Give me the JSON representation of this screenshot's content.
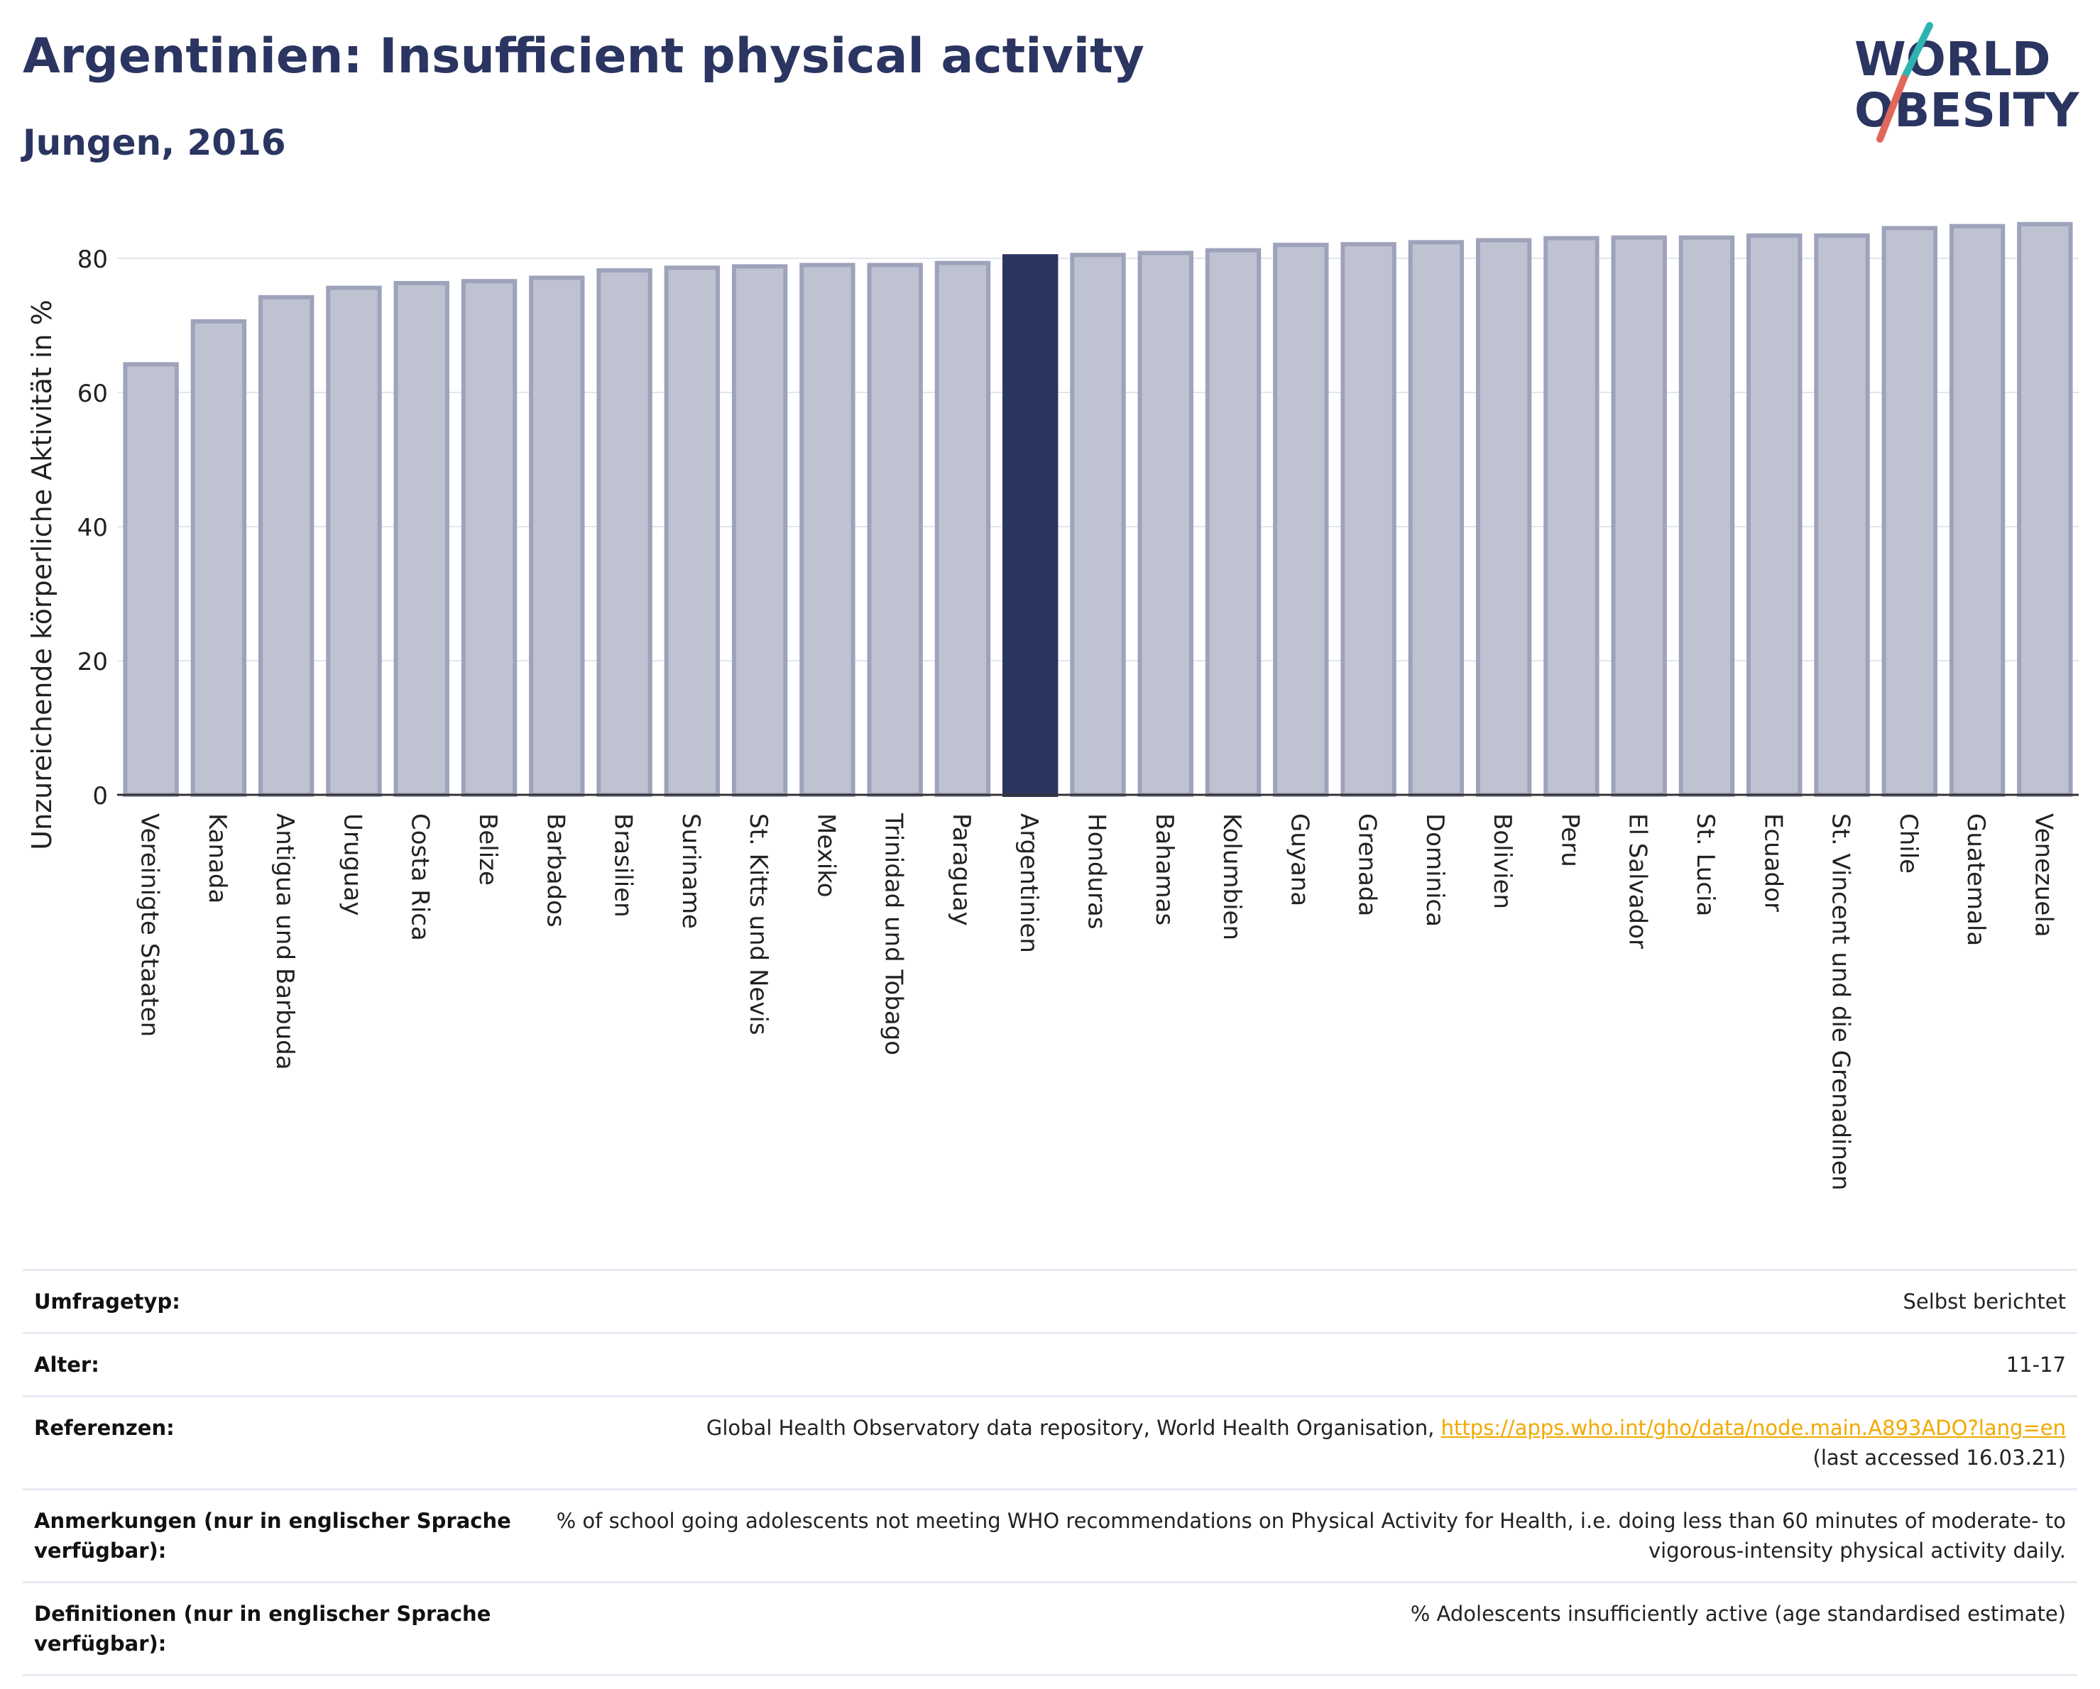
{
  "header": {
    "title": "Argentinien: Insufficient physical activity",
    "subtitle": "Jungen, 2016",
    "logo_text_line1": "WORLD",
    "logo_text_line2": "OBESITY"
  },
  "colors": {
    "title": "#2b3561",
    "bar_fill": "#bfc2d0",
    "bar_stroke": "#9ea3bb",
    "bar_highlight": "#2b3561",
    "grid": "#e3e5ee",
    "link": "#f2a900",
    "logo_dark": "#2b3561",
    "logo_teal": "#2fb3b0",
    "logo_red": "#e0675a"
  },
  "chart_data": {
    "type": "bar",
    "ylabel": "Unzureichende körperliche Aktivität in %",
    "xlabel": "",
    "ylim": [
      0,
      88
    ],
    "yticks": [
      0,
      20,
      40,
      60,
      80
    ],
    "grid": true,
    "highlight": "Argentinien",
    "categories": [
      "Vereinigte Staaten",
      "Kanada",
      "Antigua und Barbuda",
      "Uruguay",
      "Costa Rica",
      "Belize",
      "Barbados",
      "Brasilien",
      "Suriname",
      "St. Kitts und Nevis",
      "Mexiko",
      "Trinidad und Tobago",
      "Paraguay",
      "Argentinien",
      "Honduras",
      "Bahamas",
      "Kolumbien",
      "Guyana",
      "Grenada",
      "Dominica",
      "Bolivien",
      "Peru",
      "El Salvador",
      "St. Lucia",
      "Ecuador",
      "St. Vincent und die Grenadinen",
      "Chile",
      "Guatemala",
      "Venezuela"
    ],
    "values": [
      64.2,
      70.6,
      74.2,
      75.6,
      76.3,
      76.6,
      77.1,
      78.2,
      78.6,
      78.8,
      79.0,
      79.0,
      79.3,
      80.3,
      80.5,
      80.8,
      81.2,
      82.0,
      82.1,
      82.4,
      82.7,
      83.0,
      83.1,
      83.1,
      83.4,
      83.4,
      84.5,
      84.8,
      85.1
    ]
  },
  "info": {
    "rows": [
      {
        "key": "Umfragetyp:",
        "value": "Selbst berichtet"
      },
      {
        "key": "Alter:",
        "value": "11-17"
      },
      {
        "key": "Referenzen:",
        "value_prefix": "Global Health Observatory data repository, World Health Organisation, ",
        "link": "https://apps.who.int/gho/data/node.main.A893ADO?lang=en",
        "value_suffix": "(last accessed 16.03.21)"
      },
      {
        "key": "Anmerkungen (nur in englischer Sprache verfügbar):",
        "value": "% of school going adolescents not meeting WHO recommendations on Physical Activity for Health, i.e. doing less than 60 minutes of moderate- to vigorous-intensity physical activity daily."
      },
      {
        "key": "Definitionen (nur in englischer Sprache verfügbar):",
        "value": "% Adolescents insufficiently active (age standardised estimate)"
      }
    ]
  }
}
